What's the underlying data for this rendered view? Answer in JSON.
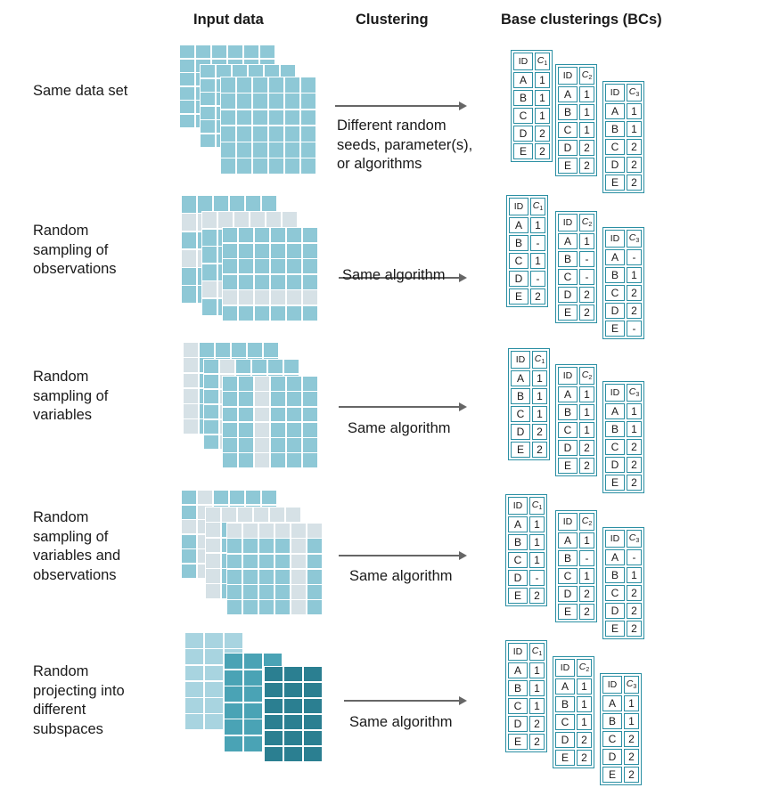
{
  "headers": {
    "input": "Input data",
    "clustering": "Clustering",
    "base": "Base clusterings (BCs)"
  },
  "colors": {
    "normal": "#8ec8d6",
    "dropped": "#d6e1e6",
    "mid": "#4aa3b5",
    "dark": "#2b7f91",
    "light": "#a8d4e0"
  },
  "rows": [
    {
      "label": "Same data set",
      "method": "Different random\nseeds, parameter(s),\nor algorithms",
      "bc": [
        {
          "header": "ID",
          "col": "C",
          "sub": "1",
          "ids": [
            "A",
            "B",
            "C",
            "D",
            "E"
          ],
          "vals": [
            "1",
            "1",
            "1",
            "2",
            "2"
          ]
        },
        {
          "header": "ID",
          "col": "C",
          "sub": "2",
          "ids": [
            "A",
            "B",
            "C",
            "D",
            "E"
          ],
          "vals": [
            "1",
            "1",
            "1",
            "2",
            "2"
          ]
        },
        {
          "header": "ID",
          "col": "C",
          "sub": "3",
          "ids": [
            "A",
            "B",
            "C",
            "D",
            "E"
          ],
          "vals": [
            "1",
            "1",
            "2",
            "2",
            "2"
          ]
        }
      ]
    },
    {
      "label": "Random\nsampling of\nobservations",
      "method": "Same algorithm",
      "bc": [
        {
          "header": "ID",
          "col": "C",
          "sub": "1",
          "ids": [
            "A",
            "B",
            "C",
            "D",
            "E"
          ],
          "vals": [
            "1",
            "-",
            "1",
            "-",
            "2"
          ]
        },
        {
          "header": "ID",
          "col": "C",
          "sub": "2",
          "ids": [
            "A",
            "B",
            "C",
            "D",
            "E"
          ],
          "vals": [
            "1",
            "-",
            "-",
            "2",
            "2"
          ]
        },
        {
          "header": "ID",
          "col": "C",
          "sub": "3",
          "ids": [
            "A",
            "B",
            "C",
            "D",
            "E"
          ],
          "vals": [
            "-",
            "1",
            "2",
            "2",
            "-"
          ]
        }
      ]
    },
    {
      "label": "Random\nsampling of\nvariables",
      "method": "Same algorithm",
      "bc": [
        {
          "header": "ID",
          "col": "C",
          "sub": "1",
          "ids": [
            "A",
            "B",
            "C",
            "D",
            "E"
          ],
          "vals": [
            "1",
            "1",
            "1",
            "2",
            "2"
          ]
        },
        {
          "header": "ID",
          "col": "C",
          "sub": "2",
          "ids": [
            "A",
            "B",
            "C",
            "D",
            "E"
          ],
          "vals": [
            "1",
            "1",
            "1",
            "2",
            "2"
          ]
        },
        {
          "header": "ID",
          "col": "C",
          "sub": "3",
          "ids": [
            "A",
            "B",
            "C",
            "D",
            "E"
          ],
          "vals": [
            "1",
            "1",
            "2",
            "2",
            "2"
          ]
        }
      ]
    },
    {
      "label": "Random\nsampling of\nvariables and\nobservations",
      "method": "Same algorithm",
      "bc": [
        {
          "header": "ID",
          "col": "C",
          "sub": "1",
          "ids": [
            "A",
            "B",
            "C",
            "D",
            "E"
          ],
          "vals": [
            "1",
            "1",
            "1",
            "-",
            "2"
          ]
        },
        {
          "header": "ID",
          "col": "C",
          "sub": "2",
          "ids": [
            "A",
            "B",
            "C",
            "D",
            "E"
          ],
          "vals": [
            "1",
            "-",
            "1",
            "2",
            "2"
          ]
        },
        {
          "header": "ID",
          "col": "C",
          "sub": "3",
          "ids": [
            "A",
            "B",
            "C",
            "D",
            "E"
          ],
          "vals": [
            "-",
            "1",
            "2",
            "2",
            "2"
          ]
        }
      ]
    },
    {
      "label": "Random\nprojecting into\ndifferent\nsubspaces",
      "method": "Same algorithm",
      "bc": [
        {
          "header": "ID",
          "col": "C",
          "sub": "1",
          "ids": [
            "A",
            "B",
            "C",
            "D",
            "E"
          ],
          "vals": [
            "1",
            "1",
            "1",
            "2",
            "2"
          ]
        },
        {
          "header": "ID",
          "col": "C",
          "sub": "2",
          "ids": [
            "A",
            "B",
            "C",
            "D",
            "E"
          ],
          "vals": [
            "1",
            "1",
            "1",
            "2",
            "2"
          ]
        },
        {
          "header": "ID",
          "col": "C",
          "sub": "3",
          "ids": [
            "A",
            "B",
            "C",
            "D",
            "E"
          ],
          "vals": [
            "1",
            "1",
            "2",
            "2",
            "2"
          ]
        }
      ]
    }
  ]
}
